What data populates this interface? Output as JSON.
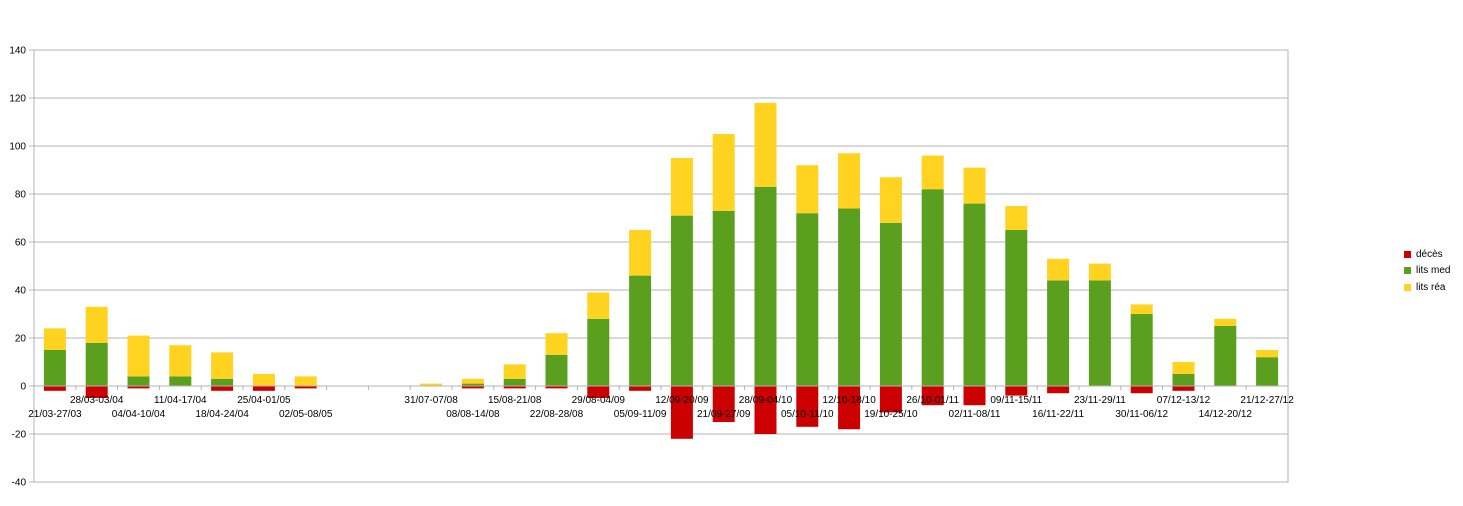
{
  "chart_data": {
    "type": "bar",
    "stacked": true,
    "ylim": [
      -40,
      140
    ],
    "yticks": [
      -40,
      -20,
      0,
      20,
      40,
      60,
      80,
      100,
      120,
      140
    ],
    "grid": true,
    "legend_position": "right",
    "categories": [
      "21/03-27/03",
      "28/03-03/04",
      "04/04-10/04",
      "11/04-17/04",
      "18/04-24/04",
      "25/04-01/05",
      "02/05-08/05",
      "",
      "",
      "31/07-07/08",
      "08/08-14/08",
      "15/08-21/08",
      "22/08-28/08",
      "29/08-04/09",
      "05/09-11/09",
      "12/09-20/09",
      "21/09-27/09",
      "28/09-04/10",
      "05/10-11/10",
      "12/10-18/10",
      "19/10-25/10",
      "26/10-01/11",
      "02/11-08/11",
      "09/11-15/11",
      "16/11-22/11",
      "23/11-29/11",
      "30/11-06/12",
      "07/12-13/12",
      "14/12-20/12",
      "21/12-27/12"
    ],
    "series": [
      {
        "name": "décès",
        "color": "#cc0000",
        "values": [
          -2,
          -5,
          -1,
          0,
          -2,
          -2,
          -1,
          0,
          0,
          0,
          -1,
          -1,
          -1,
          -5,
          -2,
          -22,
          -15,
          -20,
          -17,
          -18,
          -11,
          -8,
          -8,
          -4,
          -3,
          0,
          -3,
          -2,
          0,
          0
        ]
      },
      {
        "name": "lits med",
        "color": "#5aa01e",
        "values": [
          15,
          18,
          4,
          4,
          3,
          0,
          0,
          0,
          0,
          0,
          1,
          3,
          13,
          28,
          46,
          71,
          73,
          83,
          72,
          74,
          68,
          82,
          76,
          65,
          44,
          44,
          30,
          5,
          25,
          12
        ]
      },
      {
        "name": "lits réa",
        "color": "#ffd320",
        "values": [
          9,
          15,
          17,
          13,
          11,
          5,
          4,
          0,
          0,
          1,
          2,
          6,
          9,
          11,
          19,
          24,
          32,
          35,
          20,
          23,
          19,
          14,
          15,
          10,
          9,
          7,
          4,
          5,
          3,
          3
        ]
      }
    ]
  }
}
